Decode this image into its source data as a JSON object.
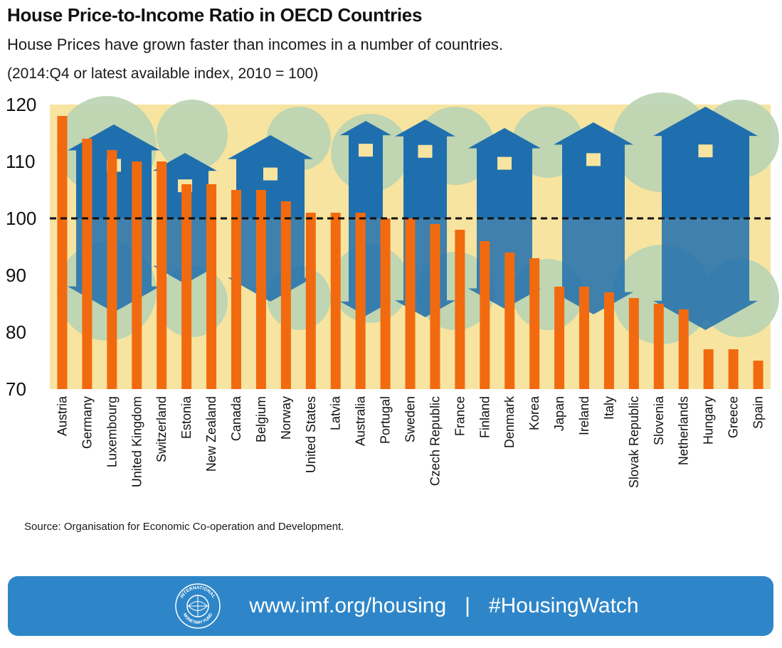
{
  "header": {
    "title": "House Price-to-Income Ratio in OECD Countries",
    "subtitle": "House Prices have grown faster than incomes in a number of countries.",
    "note": "(2014:Q4 or latest available index, 2010 = 100)"
  },
  "chart_data": {
    "type": "bar",
    "title": "House Price-to-Income Ratio in OECD Countries",
    "categories": [
      "Austria",
      "Germany",
      "Luxembourg",
      "United Kingdom",
      "Switzerland",
      "Estonia",
      "New Zealand",
      "Canada",
      "Belgium",
      "Norway",
      "United States",
      "Latvia",
      "Australia",
      "Portugal",
      "Sweden",
      "Czech Republic",
      "France",
      "Finland",
      "Denmark",
      "Korea",
      "Japan",
      "Ireland",
      "Italy",
      "Slovak Republic",
      "Slovenia",
      "Netherlands",
      "Hungary",
      "Greece",
      "Spain"
    ],
    "values": [
      118,
      114,
      112,
      110,
      110,
      106,
      106,
      105,
      105,
      103,
      101,
      101,
      101,
      100,
      100,
      99,
      98,
      96,
      94,
      93,
      88,
      88,
      87,
      86,
      85,
      84,
      77,
      77,
      75
    ],
    "ylim": [
      70,
      120
    ],
    "yticks": [
      "70",
      "80",
      "90",
      "100",
      "110",
      "120"
    ],
    "reference_line": 100,
    "grid": false,
    "colors": {
      "bar": "#f26a0f",
      "background": "#f7e4a0",
      "house": "#1f6fae",
      "tree": "#b9d3b2",
      "reference_line": "#111111"
    }
  },
  "footer": {
    "source": "Source: Organisation for Economic Co-operation and Development.",
    "website": "www.imf.org/housing",
    "separator": "|",
    "hashtag": "#HousingWatch",
    "seal_text": "INTERNATIONAL MONETARY FUND",
    "seal_icon": "imf-seal-icon",
    "banner_color": "#2e86c8"
  }
}
